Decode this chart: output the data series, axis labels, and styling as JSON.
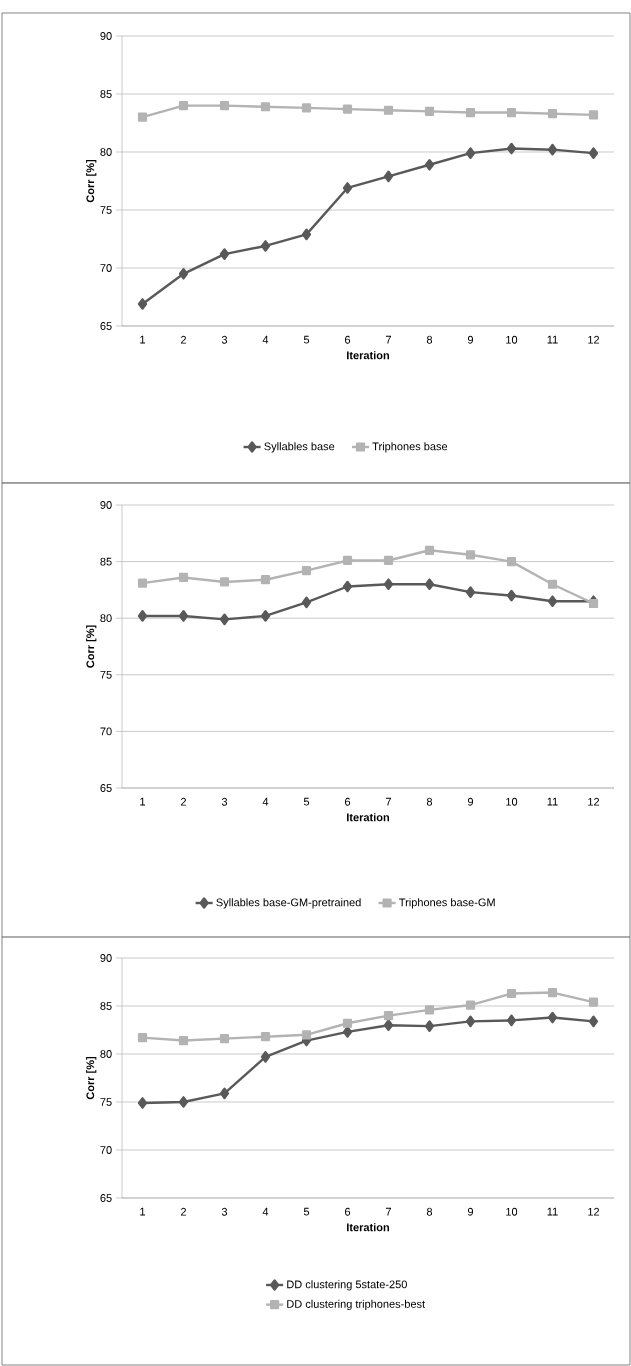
{
  "chart_data": [
    {
      "type": "line",
      "categories": [
        "1",
        "2",
        "3",
        "4",
        "5",
        "6",
        "7",
        "8",
        "9",
        "10",
        "11",
        "12"
      ],
      "xlabel": "Iteration",
      "ylabel": "Corr [%]",
      "ylim": [
        65,
        90
      ],
      "yticks": [
        65,
        70,
        75,
        80,
        85,
        90
      ],
      "grid": "y",
      "legend": "bottom",
      "series": [
        {
          "name": "Syllables base",
          "color": "#595959",
          "marker": "diamond",
          "values": [
            66.9,
            69.5,
            71.2,
            71.9,
            72.9,
            76.9,
            77.9,
            78.9,
            79.9,
            80.3,
            80.2,
            79.9
          ]
        },
        {
          "name": "Triphones base",
          "color": "#b3b3b3",
          "marker": "square",
          "values": [
            83.0,
            84.0,
            84.0,
            83.9,
            83.8,
            83.7,
            83.6,
            83.5,
            83.4,
            83.4,
            83.3,
            83.2
          ]
        }
      ]
    },
    {
      "type": "line",
      "categories": [
        "1",
        "2",
        "3",
        "4",
        "5",
        "6",
        "7",
        "8",
        "9",
        "10",
        "11",
        "12"
      ],
      "xlabel": "Iteration",
      "ylabel": "Corr [%]",
      "ylim": [
        65,
        90
      ],
      "yticks": [
        65,
        70,
        75,
        80,
        85,
        90
      ],
      "grid": "y",
      "legend": "bottom",
      "series": [
        {
          "name": "Syllables base-GM-pretrained",
          "color": "#595959",
          "marker": "diamond",
          "values": [
            80.2,
            80.2,
            79.9,
            80.2,
            81.4,
            82.8,
            83.0,
            83.0,
            82.3,
            82.0,
            81.5,
            81.5
          ]
        },
        {
          "name": "Triphones base-GM",
          "color": "#b3b3b3",
          "marker": "square",
          "values": [
            83.1,
            83.6,
            83.2,
            83.4,
            84.2,
            85.1,
            85.1,
            86.0,
            85.6,
            85.0,
            83.0,
            81.3
          ]
        }
      ]
    },
    {
      "type": "line",
      "categories": [
        "1",
        "2",
        "3",
        "4",
        "5",
        "6",
        "7",
        "8",
        "9",
        "10",
        "11",
        "12"
      ],
      "xlabel": "Iteration",
      "ylabel": "Corr [%]",
      "ylim": [
        65,
        90
      ],
      "yticks": [
        65,
        70,
        75,
        80,
        85,
        90
      ],
      "grid": "y",
      "legend": "bottom",
      "series": [
        {
          "name": "DD clustering 5state-250",
          "color": "#595959",
          "marker": "diamond",
          "values": [
            74.9,
            75.0,
            75.9,
            79.7,
            81.4,
            82.3,
            83.0,
            82.9,
            83.4,
            83.5,
            83.8,
            83.4
          ]
        },
        {
          "name": "DD clustering triphones-best",
          "color": "#b3b3b3",
          "marker": "square",
          "values": [
            81.7,
            81.4,
            81.6,
            81.8,
            82.0,
            83.2,
            84.0,
            84.6,
            85.1,
            86.3,
            86.4,
            85.4
          ]
        }
      ]
    }
  ]
}
